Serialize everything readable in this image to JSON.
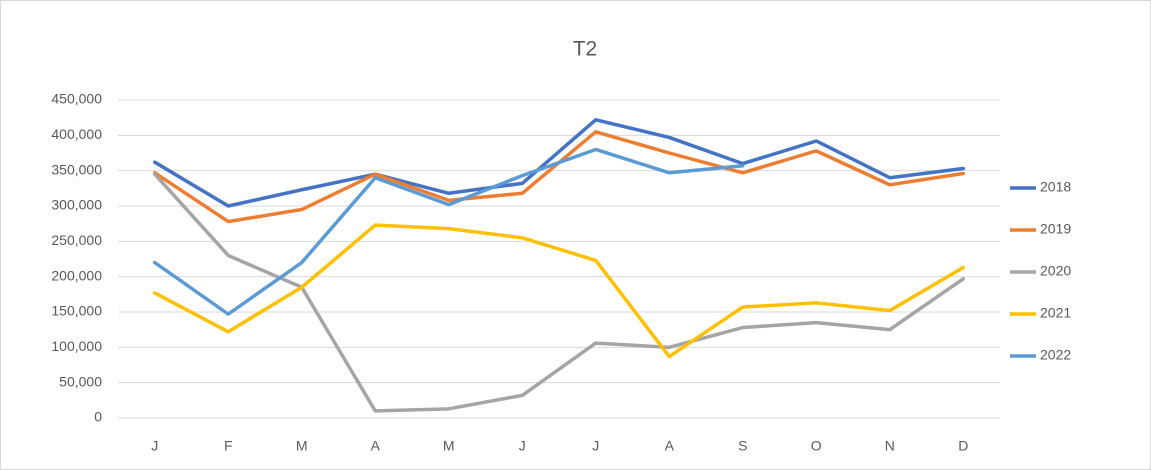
{
  "chart_data": {
    "type": "line",
    "title": "T2",
    "categories": [
      "J",
      "F",
      "M",
      "A",
      "M",
      "J",
      "J",
      "A",
      "S",
      "O",
      "N",
      "D"
    ],
    "series": [
      {
        "name": "2018",
        "color": "#4472c4",
        "values": [
          362000,
          300000,
          323000,
          345000,
          318000,
          332000,
          422000,
          397000,
          360000,
          392000,
          340000,
          353000
        ]
      },
      {
        "name": "2019",
        "color": "#ed7d31",
        "values": [
          347000,
          278000,
          295000,
          345000,
          308000,
          318000,
          405000,
          375000,
          347000,
          378000,
          330000,
          346000
        ]
      },
      {
        "name": "2020",
        "color": "#a5a5a5",
        "values": [
          345000,
          230000,
          185000,
          10000,
          13000,
          32000,
          106000,
          100000,
          128000,
          135000,
          125000,
          197000
        ]
      },
      {
        "name": "2021",
        "color": "#ffc000",
        "values": [
          177000,
          122000,
          185000,
          273000,
          268000,
          255000,
          223000,
          87000,
          157000,
          163000,
          152000,
          213000
        ]
      },
      {
        "name": "2022",
        "color": "#5b9bd5",
        "values": [
          220000,
          147000,
          220000,
          340000,
          302000,
          343000,
          380000,
          347000,
          357000,
          null,
          null,
          null
        ]
      }
    ],
    "ylim": [
      0,
      450000
    ],
    "yticks": [
      0,
      {
        "value": 50000,
        "label": "50,000"
      },
      {
        "value": 100000,
        "label": "100,000"
      },
      {
        "value": 150000,
        "label": "150,000"
      },
      {
        "value": 200000,
        "label": "200,000"
      },
      {
        "value": 250000,
        "label": "250,000"
      },
      {
        "value": 300000,
        "label": "300,000"
      },
      {
        "value": 350000,
        "label": "350,000"
      },
      {
        "value": 400000,
        "label": "400,000"
      },
      {
        "value": 450000,
        "label": "450,000"
      }
    ],
    "grid": true,
    "legend": "right"
  }
}
